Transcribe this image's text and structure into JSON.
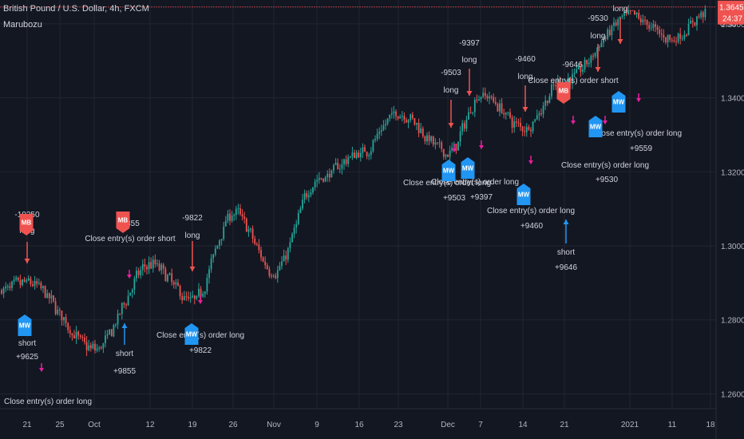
{
  "header": {
    "symbol_title": "British Pound / U.S. Dollar, 4h, FXCM",
    "indicator_name": "Marubozu"
  },
  "price_axis": {
    "currency": "USD",
    "ticks": [
      "1.36000",
      "1.34000",
      "1.32000",
      "1.30000",
      "1.28000",
      "1.26000"
    ],
    "last_price": "1.36455",
    "countdown": "24:37"
  },
  "time_axis": {
    "ticks": [
      "21",
      "25",
      "Oct",
      "12",
      "19",
      "26",
      "Nov",
      "9",
      "16",
      "23",
      "Dec",
      "7",
      "14",
      "21",
      "2021",
      "11",
      "18"
    ]
  },
  "colors": {
    "background": "#131722",
    "grid": "#1f2533",
    "text": "#b2b5be",
    "up_candle": "#26a69a",
    "down_candle": "#ef5350",
    "long_signal": "#2196f3",
    "short_signal": "#ef5350",
    "exit_marker": "#e91e9c",
    "last_price_line": "#ef5350"
  },
  "chart_data": {
    "type": "candlestick",
    "title": "British Pound / U.S. Dollar, 4h, FXCM",
    "indicator": "Marubozu",
    "ylim": [
      1.256,
      1.366
    ],
    "anchors": [
      {
        "x": "21",
        "price": 1.29
      },
      {
        "x": "Oct",
        "price": 1.272
      },
      {
        "x": "12",
        "price": 1.295
      },
      {
        "x": "19",
        "price": 1.285
      },
      {
        "x": "26",
        "price": 1.309
      },
      {
        "x": "Nov",
        "price": 1.293
      },
      {
        "x": "9",
        "price": 1.318
      },
      {
        "x": "16",
        "price": 1.325
      },
      {
        "x": "23",
        "price": 1.336
      },
      {
        "x": "Dec",
        "price": 1.325
      },
      {
        "x": "7",
        "price": 1.341
      },
      {
        "x": "14",
        "price": 1.332
      },
      {
        "x": "21",
        "price": 1.345
      },
      {
        "x": "2021",
        "price": 1.362
      },
      {
        "x": "11",
        "price": 1.356
      },
      {
        "x": "18",
        "price": 1.364
      }
    ],
    "last_price": 1.36455,
    "trade_labels": [
      {
        "text": "-19250",
        "side": "short"
      },
      {
        "text": "long",
        "side": "long"
      },
      {
        "text": "short",
        "side": "short"
      },
      {
        "text": "+9625",
        "side": "long"
      },
      {
        "text": "Close entry(s) order long",
        "side": "long"
      },
      {
        "text": "-9855",
        "side": "long"
      },
      {
        "text": "Close entry(s) order short",
        "side": "short"
      },
      {
        "text": "short",
        "side": "short"
      },
      {
        "text": "+9855",
        "side": "short"
      },
      {
        "text": "-9822",
        "side": "long"
      },
      {
        "text": "long",
        "side": "long"
      },
      {
        "text": "Close entry(s) order long",
        "side": "long"
      },
      {
        "text": "+9822",
        "side": "long"
      },
      {
        "text": "-9503",
        "side": "long"
      },
      {
        "text": "long",
        "side": "long"
      },
      {
        "text": "Close entry(s) order long",
        "side": "long"
      },
      {
        "text": "+9503",
        "side": "long"
      },
      {
        "text": "-9397",
        "side": "long"
      },
      {
        "text": "long",
        "side": "long"
      },
      {
        "text": "Close entry(s) order long",
        "side": "long"
      },
      {
        "text": "+9397",
        "side": "long"
      },
      {
        "text": "-9460",
        "side": "long"
      },
      {
        "text": "long",
        "side": "long"
      },
      {
        "text": "Close entry(s) order long",
        "side": "long"
      },
      {
        "text": "+9460",
        "side": "long"
      },
      {
        "text": "-9646",
        "side": "short"
      },
      {
        "text": "Close entry(s) order short",
        "side": "short"
      },
      {
        "text": "short",
        "side": "short"
      },
      {
        "text": "+9646",
        "side": "short"
      },
      {
        "text": "-9530",
        "side": "long"
      },
      {
        "text": "long",
        "side": "long"
      },
      {
        "text": "Close entry(s) order long",
        "side": "long"
      },
      {
        "text": "+9530",
        "side": "long"
      },
      {
        "text": "long",
        "side": "long"
      },
      {
        "text": "Close entry(s) order long",
        "side": "long"
      },
      {
        "text": "+9559",
        "side": "long"
      }
    ],
    "signal_flags": [
      {
        "text": "MB",
        "side": "short"
      },
      {
        "text": "MW",
        "side": "long"
      },
      {
        "text": "MB",
        "side": "short"
      },
      {
        "text": "MW",
        "side": "long"
      },
      {
        "text": "MW",
        "side": "long"
      },
      {
        "text": "MW",
        "side": "long"
      },
      {
        "text": "MW",
        "side": "long"
      },
      {
        "text": "MB",
        "side": "short"
      },
      {
        "text": "MW",
        "side": "long"
      },
      {
        "text": "MW",
        "side": "long"
      }
    ]
  }
}
